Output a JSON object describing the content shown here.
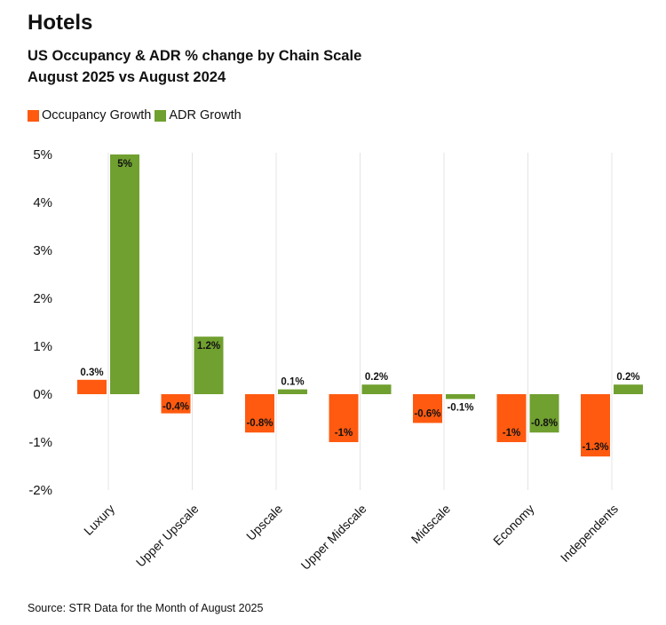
{
  "header": {
    "title": "Hotels",
    "subtitle_line1": "US Occupancy & ADR % change by Chain Scale",
    "subtitle_line2": "August 2025 vs August 2024"
  },
  "legend": [
    {
      "label": "Occupancy Growth",
      "color": "#FF5A0F"
    },
    {
      "label": "ADR Growth",
      "color": "#70A030"
    }
  ],
  "footer": {
    "source": "Source: STR Data for the Month of August 2025"
  },
  "chart_data": {
    "type": "bar",
    "title": "US Occupancy & ADR % change by Chain Scale",
    "subtitle": "August 2025 vs August 2024",
    "xlabel": "",
    "ylabel": "",
    "categories": [
      "Luxury",
      "Upper Upscale",
      "Upscale",
      "Upper Midscale",
      "Midscale",
      "Economy",
      "Independents"
    ],
    "series": [
      {
        "name": "Occupancy Growth",
        "color": "#FF5A0F",
        "values": [
          0.3,
          -0.4,
          -0.8,
          -1,
          -0.6,
          -1,
          -1.3
        ],
        "labels": [
          "0.3%",
          "-0.4%",
          "-0.8%",
          "-1%",
          "-0.6%",
          "-1%",
          "-1.3%"
        ]
      },
      {
        "name": "ADR Growth",
        "color": "#70A030",
        "values": [
          5,
          1.2,
          0.1,
          0.2,
          -0.1,
          -0.8,
          0.2
        ],
        "labels": [
          "5%",
          "1.2%",
          "0.1%",
          "0.2%",
          "-0.1%",
          "-0.8%",
          "0.2%"
        ]
      }
    ],
    "ylim": [
      -2,
      5
    ],
    "yticks": [
      5,
      4,
      3,
      2,
      1,
      0,
      -1,
      -2
    ],
    "ytick_labels": [
      "5%",
      "4%",
      "3%",
      "2%",
      "1%",
      "0%",
      "-1%",
      "-2%"
    ],
    "grid": "vertical",
    "legend_position": "top-left"
  }
}
